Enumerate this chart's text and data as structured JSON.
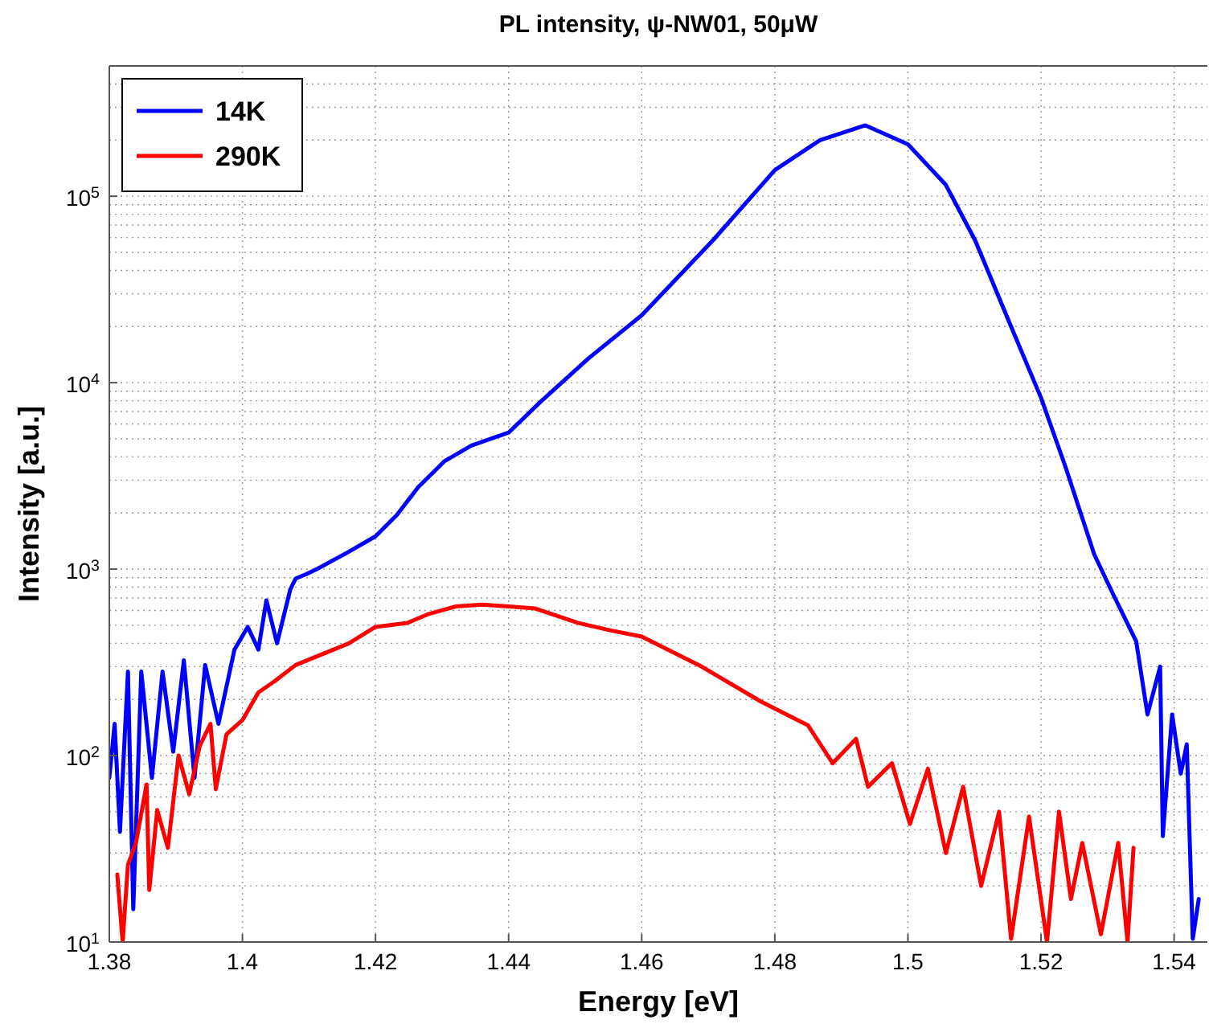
{
  "chart_data": {
    "type": "line",
    "title": "PL intensity, ψ-NW01, 50μW",
    "xlabel": "Energy [eV]",
    "ylabel": "Intensity [a.u.]",
    "log": "y",
    "grid": true,
    "legend": "top left",
    "line_style": "solid",
    "marker": "none",
    "xlim": [
      1.38,
      1.545
    ],
    "xticks": [
      1.38,
      1.4,
      1.42,
      1.44,
      1.46,
      1.48,
      1.5,
      1.52,
      1.54
    ],
    "ylim": [
      10,
      500000
    ],
    "yticks": [
      {
        "value": 10,
        "label": "10$^{1}$"
      },
      {
        "value": 100,
        "label": "10$^{2}$"
      },
      {
        "value": 1000,
        "label": "10$^{3}$"
      },
      {
        "value": 10000,
        "label": "10$^{4}$"
      },
      {
        "value": 100000,
        "label": "10$^{5}$"
      }
    ],
    "series": [
      {
        "name": "14K",
        "color": "#0000ff",
        "x": [
          1.38,
          1.3808,
          1.3816,
          1.3828,
          1.3836,
          1.3848,
          1.3864,
          1.388,
          1.3896,
          1.3912,
          1.3928,
          1.3944,
          1.3964,
          1.3988,
          1.4008,
          1.4024,
          1.4036,
          1.4052,
          1.4072,
          1.408,
          1.4096,
          1.4112,
          1.416,
          1.42,
          1.4232,
          1.4264,
          1.4304,
          1.4344,
          1.44,
          1.4448,
          1.452,
          1.46,
          1.4707,
          1.48,
          1.4868,
          1.4936,
          1.5,
          1.5057,
          1.5101,
          1.5155,
          1.52,
          1.5236,
          1.528,
          1.5307,
          1.5343,
          1.536,
          1.5379,
          1.5383,
          1.5397,
          1.541,
          1.5419,
          1.5428,
          1.5437
        ],
        "values": [
          76,
          148,
          39,
          282,
          15,
          282,
          76,
          282,
          105,
          324,
          76,
          306,
          148,
          370,
          490,
          370,
          680,
          400,
          780,
          890,
          940,
          1000,
          1240,
          1500,
          1950,
          2750,
          3800,
          4600,
          5400,
          7900,
          13500,
          23000,
          58000,
          138000,
          200000,
          240000,
          190000,
          115000,
          58000,
          20000,
          8300,
          3600,
          1200,
          750,
          410,
          166,
          300,
          37,
          166,
          80,
          115,
          10.4,
          17
        ]
      },
      {
        "name": "290K",
        "color": "#ff0000",
        "x": [
          1.3812,
          1.382,
          1.3828,
          1.384,
          1.3856,
          1.386,
          1.3872,
          1.3888,
          1.3904,
          1.392,
          1.3936,
          1.3952,
          1.396,
          1.3976,
          1.4,
          1.4024,
          1.4048,
          1.408,
          1.412,
          1.416,
          1.42,
          1.4248,
          1.428,
          1.432,
          1.436,
          1.44,
          1.444,
          1.4504,
          1.4552,
          1.46,
          1.469,
          1.4779,
          1.485,
          1.4887,
          1.4922,
          1.494,
          1.4976,
          1.5003,
          1.503,
          1.5057,
          1.5083,
          1.511,
          1.5137,
          1.5155,
          1.5182,
          1.5209,
          1.5227,
          1.5245,
          1.5262,
          1.529,
          1.5316,
          1.533,
          1.5339
        ],
        "values": [
          23,
          10,
          26,
          34,
          70,
          19,
          51,
          32,
          100,
          62,
          113,
          148,
          66,
          130,
          155,
          218,
          250,
          306,
          350,
          400,
          490,
          515,
          575,
          630,
          645,
          630,
          615,
          515,
          470,
          435,
          300,
          195,
          145,
          91,
          123,
          68,
          91,
          43,
          85,
          30,
          68,
          20,
          50,
          10.4,
          47,
          10,
          50,
          17,
          34,
          11,
          34,
          10,
          32
        ]
      }
    ]
  }
}
